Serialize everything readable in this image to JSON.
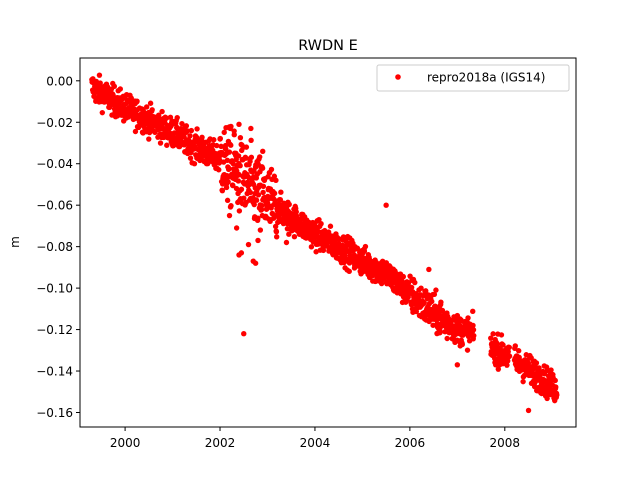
{
  "chart_data": {
    "type": "scatter",
    "title": "RWDN E",
    "xlabel": "",
    "ylabel": "m",
    "xlim": [
      1999.05,
      2009.5
    ],
    "ylim": [
      -0.167,
      0.011
    ],
    "xticks": [
      2000,
      2002,
      2004,
      2006,
      2008
    ],
    "xtick_labels": [
      "2000",
      "2002",
      "2004",
      "2006",
      "2008"
    ],
    "yticks": [
      0.0,
      -0.02,
      -0.04,
      -0.06,
      -0.08,
      -0.1,
      -0.12,
      -0.14,
      -0.16
    ],
    "ytick_labels": [
      "0.00",
      "−0.02",
      "−0.04",
      "−0.06",
      "−0.08",
      "−0.10",
      "−0.12",
      "−0.14",
      "−0.16"
    ],
    "grid": false,
    "legend_position": "top-right",
    "colors": {
      "series": "#ff0000"
    },
    "series": [
      {
        "name": "repro2018a (IGS14)",
        "marker": "circle",
        "trend": [
          [
            1999.3,
            -0.003
          ],
          [
            2000.0,
            -0.013
          ],
          [
            2000.5,
            -0.019
          ],
          [
            2001.0,
            -0.025
          ],
          [
            2001.5,
            -0.032
          ],
          [
            2002.0,
            -0.038
          ],
          [
            2002.5,
            -0.048
          ],
          [
            2003.0,
            -0.058
          ],
          [
            2003.5,
            -0.066
          ],
          [
            2004.0,
            -0.074
          ],
          [
            2004.5,
            -0.08
          ],
          [
            2005.0,
            -0.087
          ],
          [
            2005.5,
            -0.093
          ],
          [
            2006.0,
            -0.103
          ],
          [
            2006.5,
            -0.112
          ],
          [
            2007.0,
            -0.12
          ],
          [
            2007.3,
            -0.121
          ],
          [
            2007.7,
            -0.128
          ],
          [
            2008.0,
            -0.132
          ],
          [
            2008.5,
            -0.139
          ],
          [
            2009.1,
            -0.149
          ]
        ],
        "gaps": [
          [
            2007.35,
            2007.7
          ],
          [
            2008.1,
            2008.2
          ]
        ],
        "scatter_spread": 0.0035,
        "outliers": [
          [
            2002.23,
            -0.022
          ],
          [
            2002.3,
            -0.026
          ],
          [
            2002.4,
            -0.021
          ],
          [
            2002.65,
            -0.023
          ],
          [
            2002.5,
            -0.032
          ],
          [
            2002.9,
            -0.034
          ],
          [
            2002.15,
            -0.047
          ],
          [
            2002.2,
            -0.065
          ],
          [
            2002.35,
            -0.071
          ],
          [
            2002.4,
            -0.084
          ],
          [
            2002.45,
            -0.083
          ],
          [
            2002.7,
            -0.087
          ],
          [
            2002.75,
            -0.088
          ],
          [
            2002.8,
            -0.077
          ],
          [
            2002.85,
            -0.072
          ],
          [
            2002.6,
            -0.079
          ],
          [
            2002.5,
            -0.122
          ],
          [
            2002.55,
            -0.046
          ],
          [
            2002.62,
            -0.05
          ],
          [
            2002.95,
            -0.066
          ],
          [
            2003.4,
            -0.078
          ],
          [
            2003.45,
            -0.074
          ],
          [
            2003.1,
            -0.064
          ],
          [
            2005.5,
            -0.06
          ],
          [
            2006.4,
            -0.091
          ],
          [
            2006.8,
            -0.118
          ],
          [
            2007.0,
            -0.137
          ],
          [
            2008.5,
            -0.159
          ],
          [
            2008.6,
            -0.145
          ]
        ]
      }
    ]
  }
}
